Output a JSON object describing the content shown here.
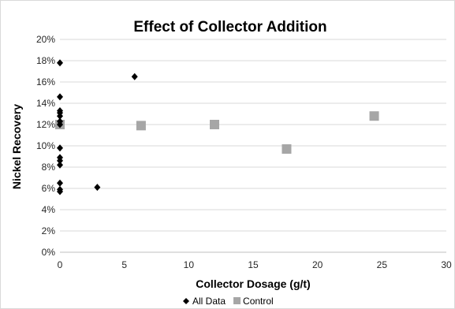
{
  "chart_data": {
    "type": "scatter",
    "title": "Effect of Collector Addition",
    "xlabel": "Collector Dosage (g/t)",
    "ylabel": "Nickel Recovery",
    "xlim": [
      0,
      30
    ],
    "ylim": [
      0,
      20
    ],
    "x_ticks": [
      0,
      5,
      10,
      15,
      20,
      25,
      30
    ],
    "y_ticks": [
      0,
      2,
      4,
      6,
      8,
      10,
      12,
      14,
      16,
      18,
      20
    ],
    "y_tick_suffix": "%",
    "grid": {
      "horizontal": true,
      "vertical": false
    },
    "legend_position": "bottom",
    "series": [
      {
        "name": "All Data",
        "marker": "diamond",
        "color": "#000000",
        "points": [
          {
            "x": 0,
            "y": 17.8
          },
          {
            "x": 0,
            "y": 14.6
          },
          {
            "x": 0,
            "y": 13.3
          },
          {
            "x": 0,
            "y": 13.1
          },
          {
            "x": 0,
            "y": 12.8
          },
          {
            "x": 0,
            "y": 12.3
          },
          {
            "x": 0,
            "y": 12.0
          },
          {
            "x": 0,
            "y": 9.8
          },
          {
            "x": 0,
            "y": 8.9
          },
          {
            "x": 0,
            "y": 8.6
          },
          {
            "x": 0,
            "y": 8.2
          },
          {
            "x": 0,
            "y": 6.5
          },
          {
            "x": 0,
            "y": 5.9
          },
          {
            "x": 0,
            "y": 5.7
          },
          {
            "x": 2.9,
            "y": 6.1
          },
          {
            "x": 5.8,
            "y": 16.5
          }
        ]
      },
      {
        "name": "Control",
        "marker": "square",
        "color": "#a6a6a6",
        "points": [
          {
            "x": 0,
            "y": 12.0
          },
          {
            "x": 6.3,
            "y": 11.9
          },
          {
            "x": 12.0,
            "y": 12.0
          },
          {
            "x": 17.6,
            "y": 9.7
          },
          {
            "x": 24.4,
            "y": 12.8
          }
        ]
      }
    ]
  }
}
